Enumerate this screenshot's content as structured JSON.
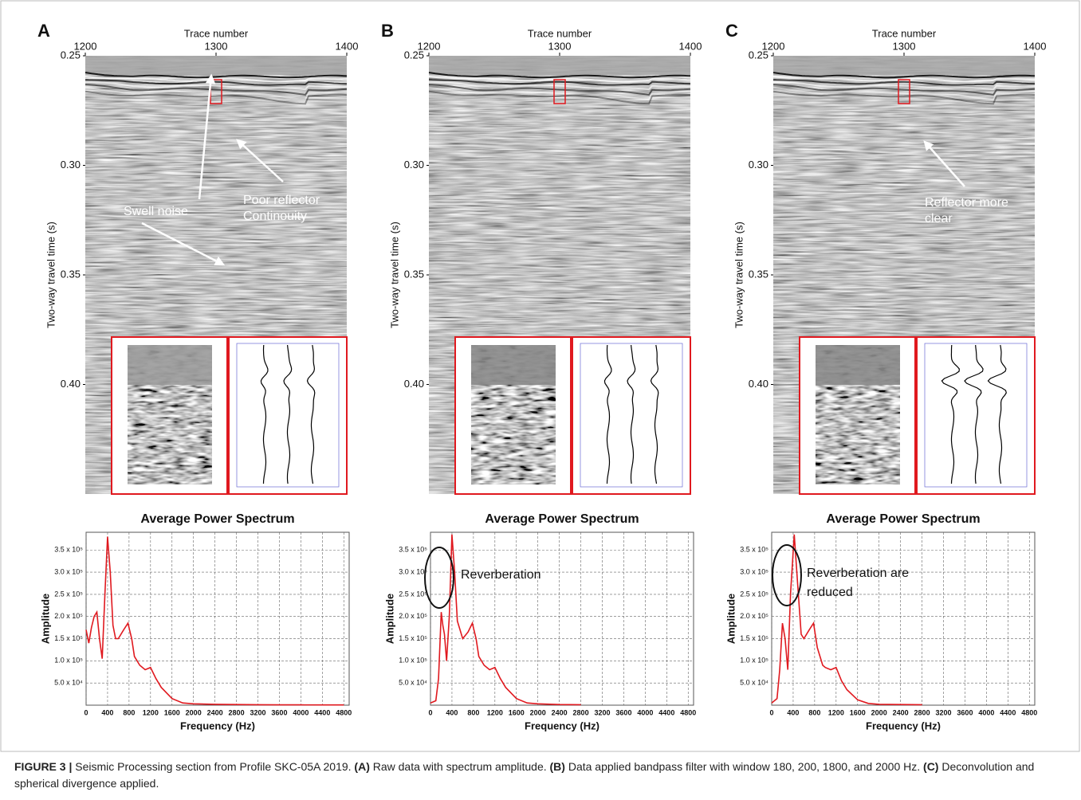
{
  "panels": [
    {
      "label": "A",
      "section": {
        "x_label": "Trace number",
        "y_label": "Two-way travel time (s)",
        "xlim": [
          1200,
          1400
        ],
        "xticks": [
          1200,
          1300,
          1400
        ],
        "ylim": [
          0.25,
          0.45
        ],
        "yticks": [
          0.25,
          {
            "value": 0.3,
            "label": "0.30"
          },
          0.35,
          {
            "value": 0.4,
            "label": "0.40"
          }
        ],
        "annotations": [
          [
            "Swell noise"
          ],
          [
            "Poor reflector",
            "Continouity"
          ]
        ]
      }
    },
    {
      "label": "B",
      "section": {
        "x_label": "Trace number",
        "y_label": "Two-way travel time (s)",
        "xlim": [
          1200,
          1400
        ],
        "xticks": [
          1200,
          1300,
          1400
        ],
        "ylim": [
          0.25,
          0.45
        ],
        "yticks": [
          0.25,
          {
            "value": 0.3,
            "label": "0.30"
          },
          0.35,
          {
            "value": 0.4,
            "label": "0.40"
          }
        ],
        "annotations": []
      }
    },
    {
      "label": "C",
      "section": {
        "x_label": "Trace number",
        "y_label": "Two-way travel time (s)",
        "xlim": [
          1200,
          1400
        ],
        "xticks": [
          1200,
          1300,
          1400
        ],
        "ylim": [
          0.25,
          0.45
        ],
        "yticks": [
          0.25,
          {
            "value": 0.3,
            "label": "0.30"
          },
          0.35,
          {
            "value": 0.4,
            "label": "0.40"
          }
        ],
        "annotations": [
          [
            "Reflector more",
            "clear"
          ]
        ]
      }
    }
  ],
  "chart_data": [
    {
      "type": "line",
      "title": "Average Power Spectrum",
      "x_label": "Frequency (Hz)",
      "y_label": "Amplitude",
      "color": "#e0191f",
      "grid": true,
      "xlim": [
        0,
        4900
      ],
      "xticks": [
        0,
        400,
        800,
        1200,
        1600,
        2000,
        2400,
        2800,
        3200,
        3600,
        4000,
        4400,
        4800
      ],
      "ylim": [
        0,
        390000
      ],
      "yticks": [
        {
          "value": 50000,
          "label": "5.0 x 10⁴"
        },
        {
          "value": 100000,
          "label": "1.0 x 10⁵"
        },
        {
          "value": 150000,
          "label": "1.5 x 10⁵"
        },
        {
          "value": 200000,
          "label": "2.0 x 10⁵"
        },
        {
          "value": 250000,
          "label": "2.5 x 10⁵"
        },
        {
          "value": 300000,
          "label": "3.0 x 10⁵"
        },
        {
          "value": 350000,
          "label": "3.5 x 10⁵"
        }
      ],
      "x": [
        0,
        50,
        100,
        150,
        200,
        250,
        300,
        350,
        400,
        450,
        500,
        550,
        600,
        700,
        780,
        850,
        900,
        1000,
        1100,
        1200,
        1300,
        1400,
        1600,
        1800,
        2000,
        2400,
        2800,
        3200,
        3600,
        4000,
        4400,
        4800
      ],
      "values": [
        170000,
        140000,
        175000,
        200000,
        210000,
        150000,
        105000,
        250000,
        380000,
        300000,
        180000,
        150000,
        150000,
        170000,
        185000,
        150000,
        110000,
        90000,
        80000,
        85000,
        60000,
        40000,
        15000,
        5000,
        3000,
        2000,
        1500,
        1000,
        800,
        800,
        600,
        500
      ],
      "annotation": []
    },
    {
      "type": "line",
      "title": "Average Power Spectrum",
      "x_label": "Frequency (Hz)",
      "y_label": "Amplitude",
      "color": "#e0191f",
      "grid": true,
      "xlim": [
        0,
        4900
      ],
      "xticks": [
        0,
        400,
        800,
        1200,
        1600,
        2000,
        2400,
        2800,
        3200,
        3600,
        4000,
        4400,
        4800
      ],
      "ylim": [
        0,
        390000
      ],
      "yticks": [
        {
          "value": 50000,
          "label": "5.0 x 10⁴"
        },
        {
          "value": 100000,
          "label": "1.0 x 10⁵"
        },
        {
          "value": 150000,
          "label": "1.5 x 10⁵"
        },
        {
          "value": 200000,
          "label": "2.0 x 10⁵"
        },
        {
          "value": 250000,
          "label": "2.5 x 10⁵"
        },
        {
          "value": 300000,
          "label": "3.0 x 10⁵"
        },
        {
          "value": 350000,
          "label": "3.5 x 10⁵"
        }
      ],
      "x": [
        0,
        100,
        150,
        200,
        230,
        260,
        300,
        350,
        400,
        450,
        500,
        600,
        700,
        780,
        850,
        900,
        1000,
        1100,
        1200,
        1300,
        1400,
        1600,
        1800,
        2000,
        2400,
        2800
      ],
      "values": [
        5000,
        10000,
        60000,
        210000,
        180000,
        160000,
        100000,
        200000,
        385000,
        300000,
        190000,
        150000,
        165000,
        185000,
        150000,
        110000,
        90000,
        80000,
        85000,
        60000,
        40000,
        15000,
        5000,
        3000,
        1500,
        1000
      ],
      "annotation": [
        "Reverberation"
      ]
    },
    {
      "type": "line",
      "title": "Average Power Spectrum",
      "x_label": "Frequency (Hz)",
      "y_label": "Amplitude",
      "color": "#e0191f",
      "grid": true,
      "xlim": [
        0,
        4900
      ],
      "xticks": [
        0,
        400,
        800,
        1200,
        1600,
        2000,
        2400,
        2800,
        3200,
        3600,
        4000,
        4400,
        4800
      ],
      "ylim": [
        0,
        390000
      ],
      "yticks": [
        {
          "value": 50000,
          "label": "5.0 x 10⁴"
        },
        {
          "value": 100000,
          "label": "1.0 x 10⁵"
        },
        {
          "value": 150000,
          "label": "1.5 x 10⁵"
        },
        {
          "value": 200000,
          "label": "2.0 x 10⁵"
        },
        {
          "value": 250000,
          "label": "2.5 x 10⁵"
        },
        {
          "value": 300000,
          "label": "3.0 x 10⁵"
        },
        {
          "value": 350000,
          "label": "3.5 x 10⁵"
        }
      ],
      "x": [
        0,
        100,
        150,
        200,
        250,
        300,
        350,
        420,
        480,
        550,
        600,
        700,
        780,
        850,
        950,
        1000,
        1100,
        1200,
        1300,
        1400,
        1600,
        1800,
        2000,
        2400,
        2800
      ],
      "values": [
        5000,
        15000,
        80000,
        185000,
        150000,
        80000,
        250000,
        385000,
        280000,
        160000,
        150000,
        170000,
        185000,
        130000,
        90000,
        85000,
        80000,
        85000,
        55000,
        35000,
        12000,
        4000,
        2000,
        1500,
        1000
      ],
      "annotation": [
        "Reverberation are",
        "reduced"
      ]
    }
  ],
  "caption": {
    "segments": [
      {
        "text": "FIGURE 3 |",
        "bold": true
      },
      {
        "text": " Seismic Processing section from Profile SKC-05A 2019. ",
        "bold": false
      },
      {
        "text": "(A)",
        "bold": true
      },
      {
        "text": " Raw data with spectrum amplitude. ",
        "bold": false
      },
      {
        "text": "(B)",
        "bold": true
      },
      {
        "text": " Data applied bandpass filter with window 180, 200, 1800, and 2000 Hz. ",
        "bold": false
      },
      {
        "text": "(C)",
        "bold": true
      },
      {
        "text": " Deconvolution and spherical divergence applied.",
        "bold": false
      }
    ]
  }
}
